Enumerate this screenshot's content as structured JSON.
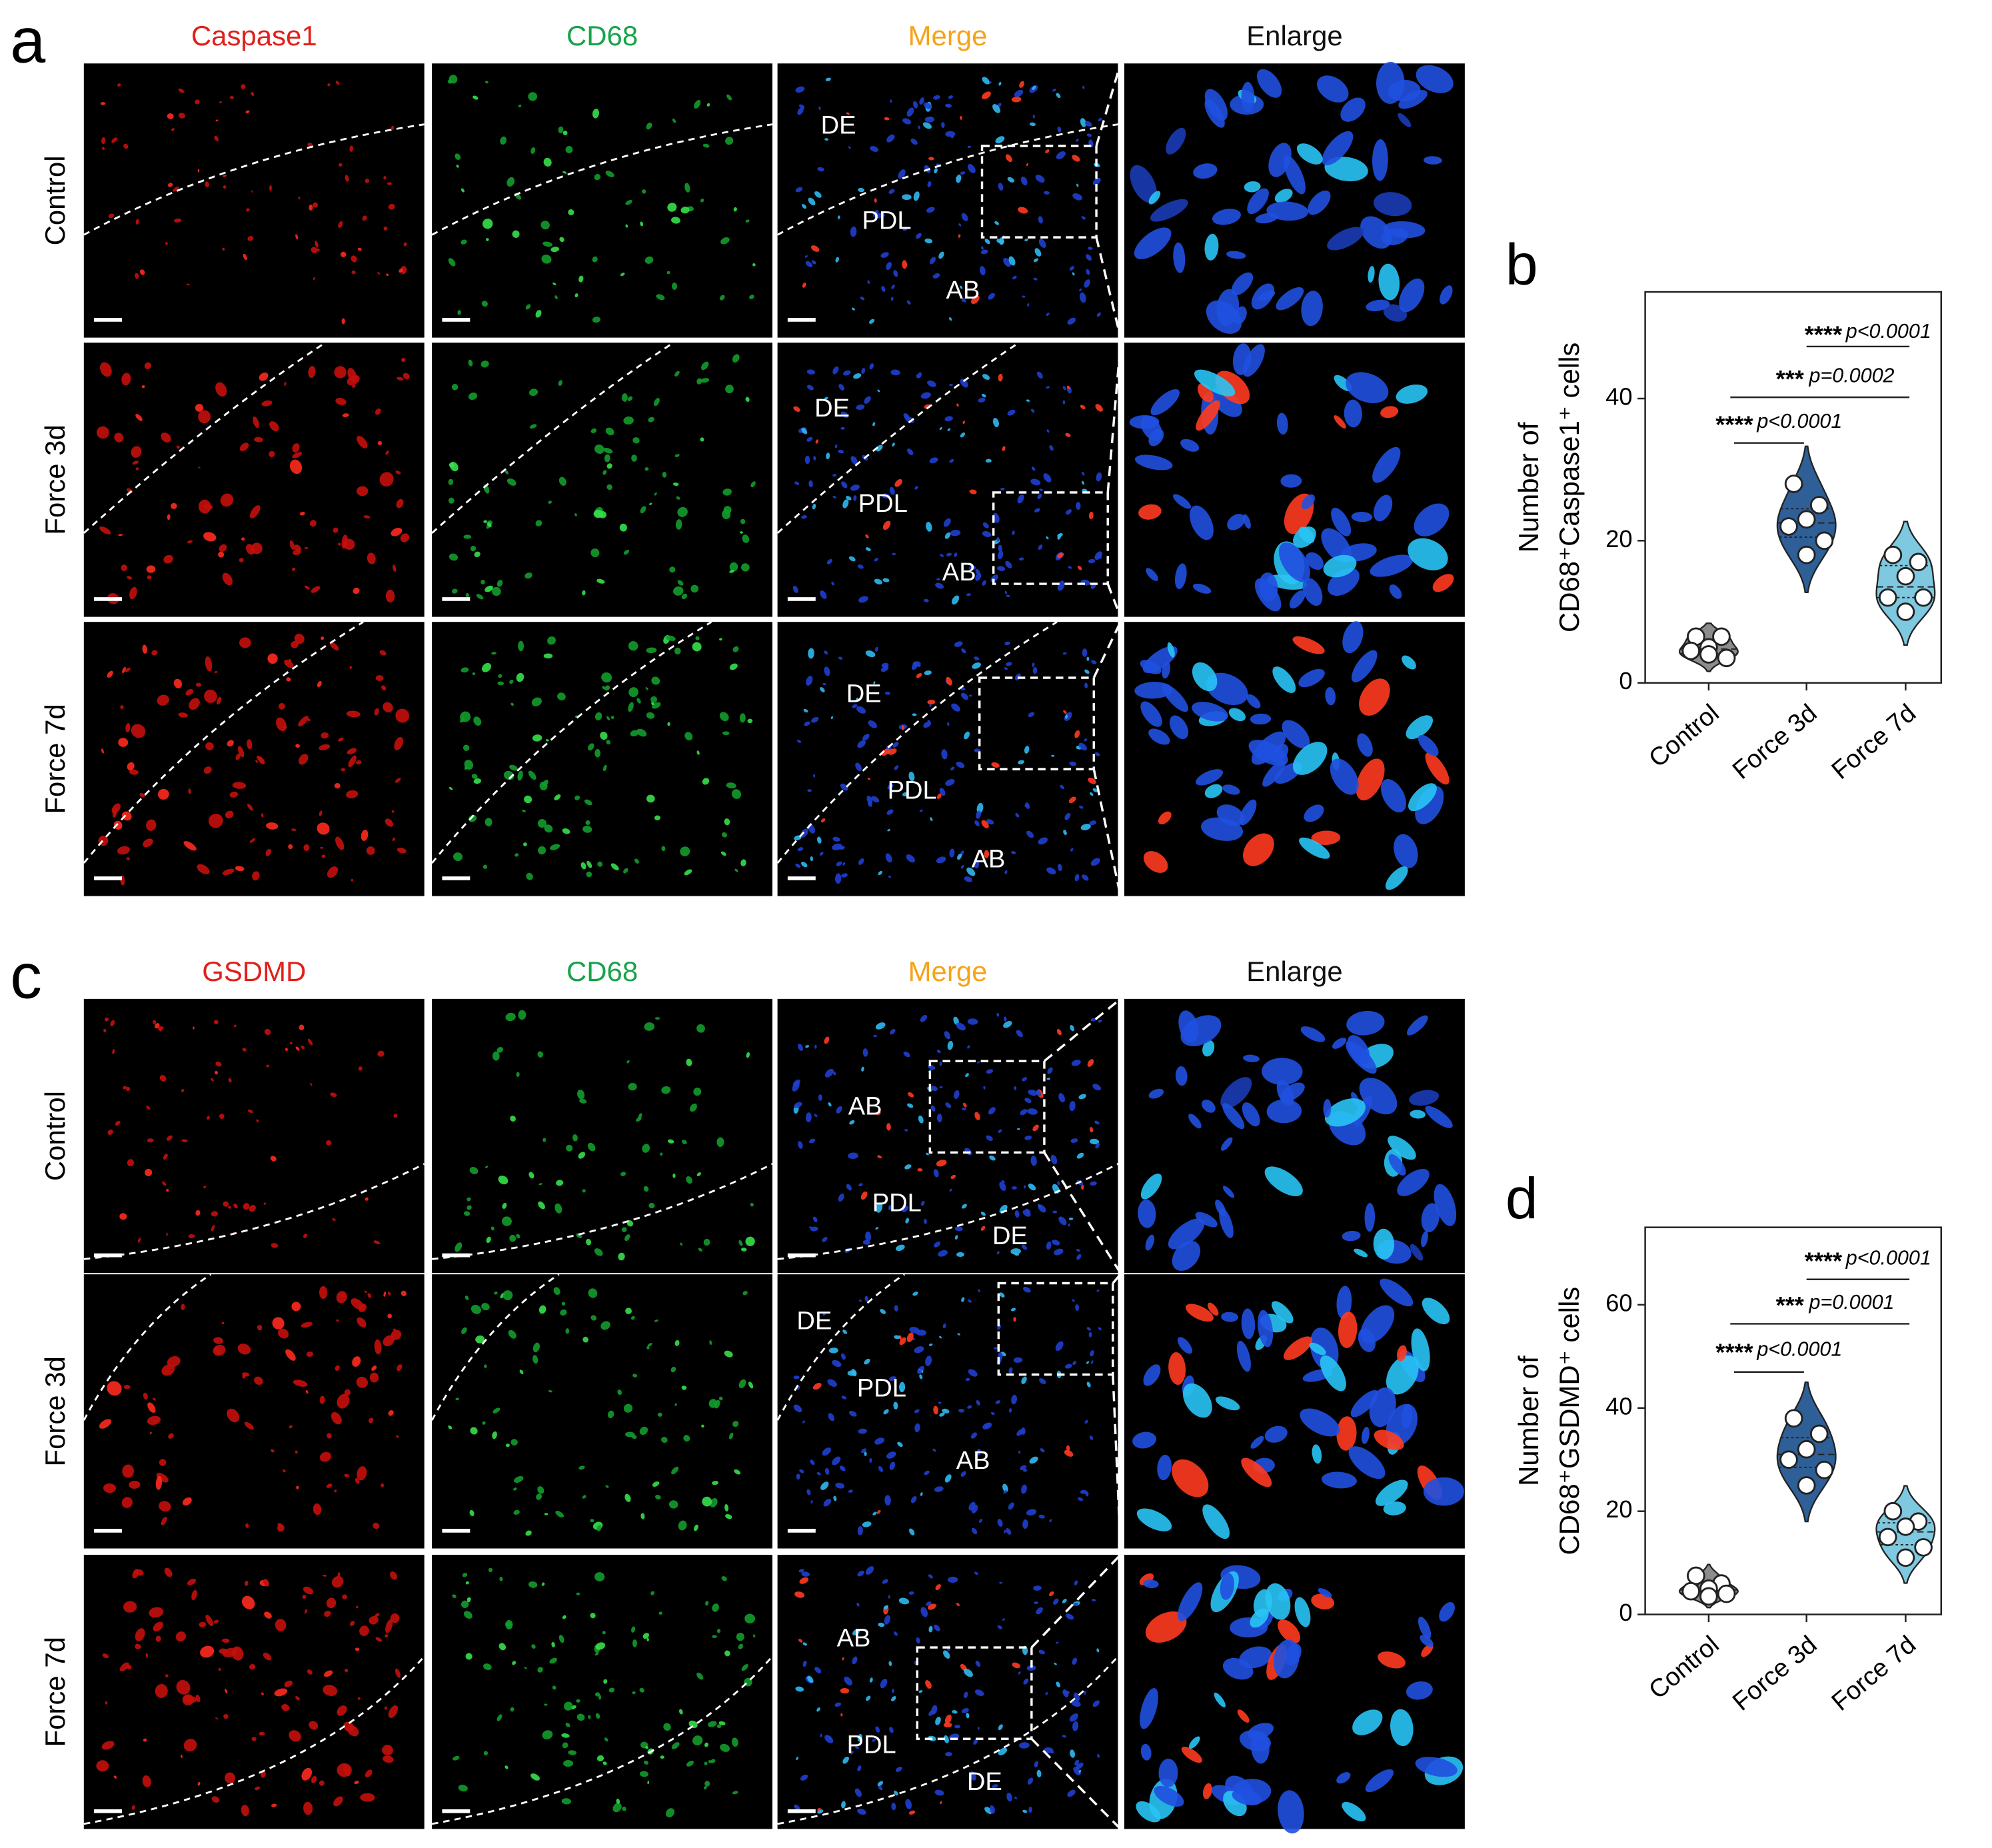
{
  "figure_panels": [
    {
      "label": "a",
      "headers": [
        "Caspase1",
        "CD68",
        "Merge",
        "Enlarge"
      ],
      "rows": [
        "Control",
        "Force 3d",
        "Force 7d"
      ],
      "merge_labels": [
        [
          "DE",
          "PDL",
          "AB"
        ],
        [
          "DE",
          "PDL",
          "AB"
        ],
        [
          "DE",
          "PDL",
          "AB"
        ]
      ]
    },
    {
      "label": "c",
      "headers": [
        "GSDMD",
        "CD68",
        "Merge",
        "Enlarge"
      ],
      "rows": [
        "Control",
        "Force 3d",
        "Force 7d"
      ],
      "merge_labels": [
        [
          "AB",
          "PDL",
          "DE"
        ],
        [
          "DE",
          "PDL",
          "AB"
        ],
        [
          "AB",
          "PDL",
          "DE"
        ]
      ]
    }
  ],
  "chart_data": [
    {
      "type": "violin",
      "panel_label": "b",
      "y_label": [
        "Number of",
        "CD68⁺Caspase1⁺ cells"
      ],
      "categories": [
        "Control",
        "Force 3d",
        "Force 7d"
      ],
      "colors": [
        "#8c8c8c",
        "#2f5f97",
        "#7ec8e0"
      ],
      "values": [
        [
          6.5,
          6.5,
          5,
          4.5,
          3.5,
          4
        ],
        [
          28,
          25,
          23,
          22,
          20,
          18
        ],
        [
          18,
          17,
          15,
          12,
          12,
          10
        ]
      ],
      "ylim": [
        0,
        55
      ],
      "yticks": [
        0,
        20,
        40
      ],
      "comparisons": [
        {
          "stars": "****",
          "p": "p<0.0001"
        },
        {
          "stars": "***",
          "p": "p=0.0002"
        },
        {
          "stars": "****",
          "p": "p<0.0001"
        }
      ]
    },
    {
      "type": "violin",
      "panel_label": "d",
      "y_label": [
        "Number of",
        "CD68⁺GSDMD⁺ cells"
      ],
      "categories": [
        "Control",
        "Force 3d",
        "Force 7d"
      ],
      "colors": [
        "#8c8c8c",
        "#2f5f97",
        "#7ec8e0"
      ],
      "values": [
        [
          7.5,
          6,
          5,
          4.5,
          4,
          3.5
        ],
        [
          38,
          35,
          32,
          30,
          28,
          25
        ],
        [
          20,
          18,
          17,
          15,
          13,
          11
        ]
      ],
      "ylim": [
        0,
        75
      ],
      "yticks": [
        0,
        20,
        40,
        60
      ],
      "comparisons": [
        {
          "stars": "****",
          "p": "p<0.0001"
        },
        {
          "stars": "***",
          "p": "p=0.0001"
        },
        {
          "stars": "****",
          "p": "p<0.0001"
        }
      ]
    }
  ]
}
